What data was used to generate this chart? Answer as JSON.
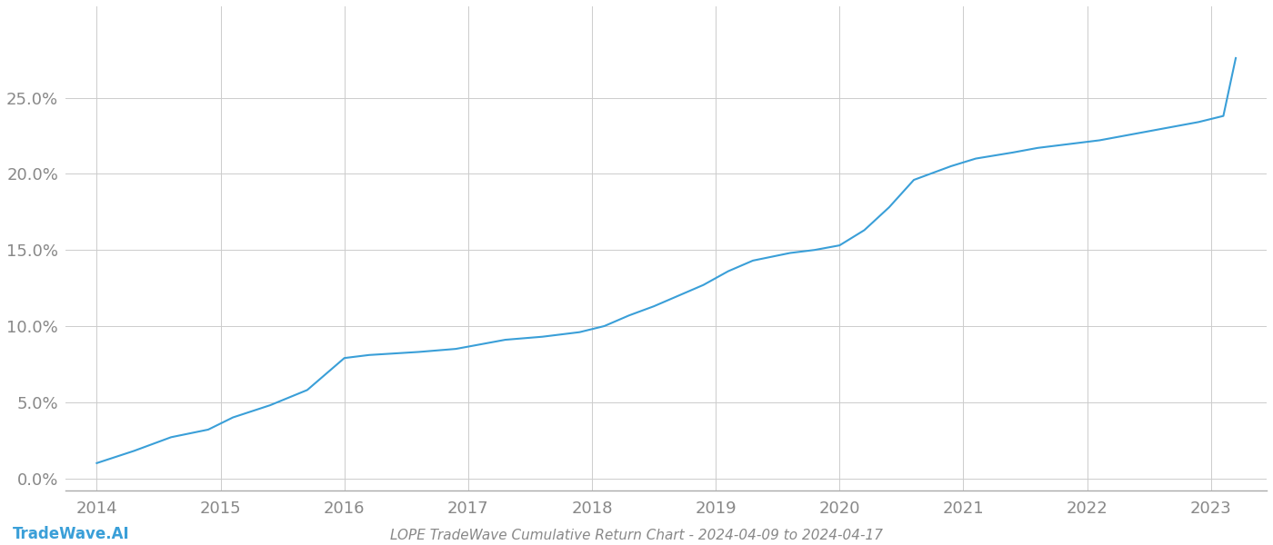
{
  "title": "LOPE TradeWave Cumulative Return Chart - 2024-04-09 to 2024-04-17",
  "watermark": "TradeWave.AI",
  "line_color": "#3a9fd8",
  "background_color": "#ffffff",
  "grid_color": "#cccccc",
  "x_values": [
    2014.0,
    2014.3,
    2014.6,
    2014.9,
    2015.1,
    2015.4,
    2015.7,
    2016.0,
    2016.2,
    2016.4,
    2016.6,
    2016.9,
    2017.1,
    2017.3,
    2017.6,
    2017.9,
    2018.1,
    2018.3,
    2018.5,
    2018.7,
    2018.9,
    2019.1,
    2019.3,
    2019.6,
    2019.8,
    2020.0,
    2020.2,
    2020.4,
    2020.6,
    2020.9,
    2021.1,
    2021.4,
    2021.6,
    2021.9,
    2022.1,
    2022.3,
    2022.5,
    2022.7,
    2022.9,
    2023.1,
    2023.2
  ],
  "y_values": [
    0.01,
    0.018,
    0.027,
    0.032,
    0.04,
    0.048,
    0.058,
    0.079,
    0.081,
    0.082,
    0.083,
    0.085,
    0.088,
    0.091,
    0.093,
    0.096,
    0.1,
    0.107,
    0.113,
    0.12,
    0.127,
    0.136,
    0.143,
    0.148,
    0.15,
    0.153,
    0.163,
    0.178,
    0.196,
    0.205,
    0.21,
    0.214,
    0.217,
    0.22,
    0.222,
    0.225,
    0.228,
    0.231,
    0.234,
    0.238,
    0.276
  ],
  "xlim": [
    2013.75,
    2023.45
  ],
  "ylim": [
    -0.008,
    0.31
  ],
  "yticks": [
    0.0,
    0.05,
    0.1,
    0.15,
    0.2,
    0.25
  ],
  "ytick_labels": [
    "0.0%",
    "5.0%",
    "10.0%",
    "15.0%",
    "20.0%",
    "25.0%"
  ],
  "xticks": [
    2014,
    2015,
    2016,
    2017,
    2018,
    2019,
    2020,
    2021,
    2022,
    2023
  ],
  "xtick_labels": [
    "2014",
    "2015",
    "2016",
    "2017",
    "2018",
    "2019",
    "2020",
    "2021",
    "2022",
    "2023"
  ],
  "linewidth": 1.5,
  "font_color": "#888888",
  "axis_color": "#aaaaaa",
  "title_fontsize": 11,
  "tick_fontsize": 13,
  "watermark_fontsize": 12
}
